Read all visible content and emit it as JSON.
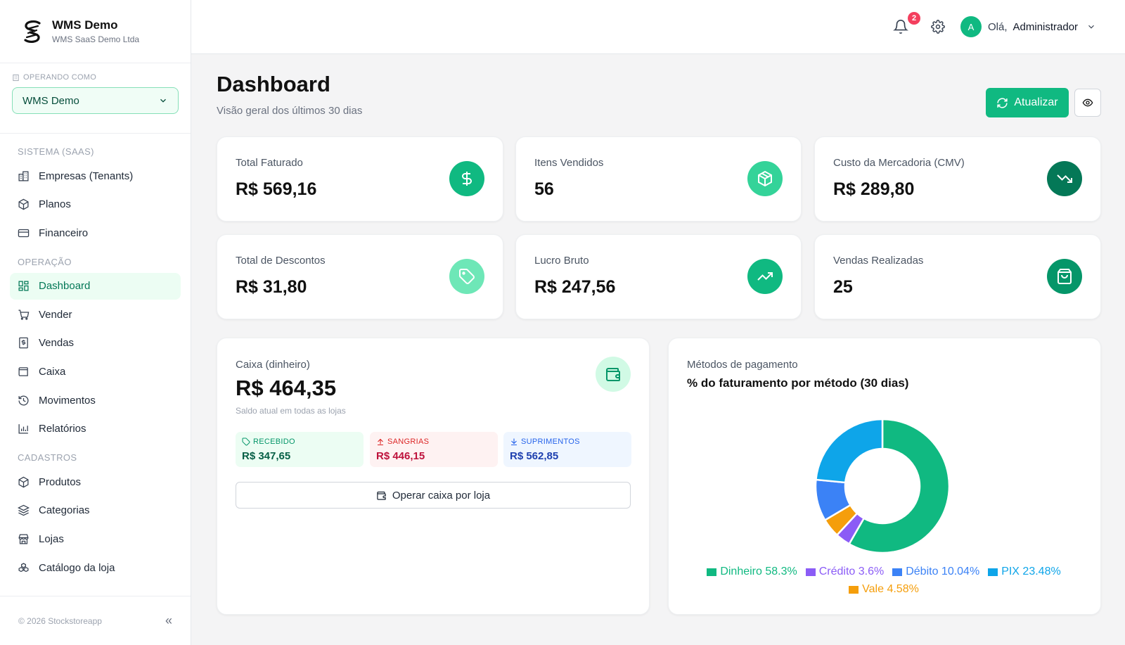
{
  "brand": {
    "title": "WMS Demo",
    "subtitle": "WMS SaaS Demo Ltda"
  },
  "operating": {
    "label": "OPERANDO COMO",
    "selected": "WMS Demo"
  },
  "nav": {
    "sections": [
      {
        "title": "SISTEMA (SAAS)",
        "items": [
          "Empresas (Tenants)",
          "Planos",
          "Financeiro"
        ]
      },
      {
        "title": "OPERAÇÃO",
        "items": [
          "Dashboard",
          "Vender",
          "Vendas",
          "Caixa",
          "Movimentos",
          "Relatórios"
        ]
      },
      {
        "title": "CADASTROS",
        "items": [
          "Produtos",
          "Categorias",
          "Lojas",
          "Catálogo da loja"
        ]
      }
    ],
    "active": "Dashboard"
  },
  "footer": {
    "copyright": "© 2026 Stockstoreapp",
    "collapse": "«"
  },
  "header": {
    "notifications": "2",
    "greeting": "Olá,",
    "user": "Administrador",
    "avatar_letter": "A"
  },
  "page": {
    "title": "Dashboard",
    "subtitle": "Visão geral dos últimos 30 dias",
    "refresh_label": "Atualizar"
  },
  "stats": [
    {
      "label": "Total Faturado",
      "value": "R$ 569,16",
      "icon": "dollar-icon",
      "color": "#10b981"
    },
    {
      "label": "Itens Vendidos",
      "value": "56",
      "icon": "package-icon",
      "color": "#34d399"
    },
    {
      "label": "Custo da Mercadoria (CMV)",
      "value": "R$ 289,80",
      "icon": "trending-down-icon",
      "color": "#047857"
    },
    {
      "label": "Total de Descontos",
      "value": "R$ 31,80",
      "icon": "tag-icon",
      "color": "#6ee7b7"
    },
    {
      "label": "Lucro Bruto",
      "value": "R$ 247,56",
      "icon": "trending-up-icon",
      "color": "#10b981"
    },
    {
      "label": "Vendas Realizadas",
      "value": "25",
      "icon": "shopping-bag-icon",
      "color": "#059669"
    }
  ],
  "caixa": {
    "label": "Caixa (dinheiro)",
    "value": "R$ 464,35",
    "sub": "Saldo atual em todas as lojas",
    "recebido": {
      "label": "RECEBIDO",
      "value": "R$ 347,65"
    },
    "sangrias": {
      "label": "SANGRIAS",
      "value": "R$ 446,15"
    },
    "suprimentos": {
      "label": "SUPRIMENTOS",
      "value": "R$ 562,85"
    },
    "button": "Operar caixa por loja"
  },
  "payment": {
    "label": "Métodos de pagamento",
    "title": "% do faturamento por método (30 dias)"
  },
  "chart_data": {
    "type": "pie",
    "title": "% do faturamento por método (30 dias)",
    "categories": [
      "Dinheiro",
      "Crédito",
      "Débito",
      "PIX",
      "Vale"
    ],
    "values": [
      58.3,
      3.6,
      10.04,
      23.48,
      4.58
    ],
    "order": [
      "Dinheiro",
      "Crédito",
      "Vale",
      "Débito",
      "PIX"
    ],
    "colors": {
      "Dinheiro": "#10b981",
      "Crédito": "#8b5cf6",
      "Débito": "#3b82f6",
      "PIX": "#0ea5e9",
      "Vale": "#f59e0b"
    },
    "legend": [
      {
        "text": "Dinheiro 58.3%",
        "color": "#10b981"
      },
      {
        "text": "Crédito 3.6%",
        "color": "#8b5cf6"
      },
      {
        "text": "Débito 10.04%",
        "color": "#3b82f6"
      },
      {
        "text": "PIX 23.48%",
        "color": "#0ea5e9"
      },
      {
        "text": "Vale 4.58%",
        "color": "#f59e0b"
      }
    ],
    "legend_position": "bottom",
    "donut": true
  }
}
